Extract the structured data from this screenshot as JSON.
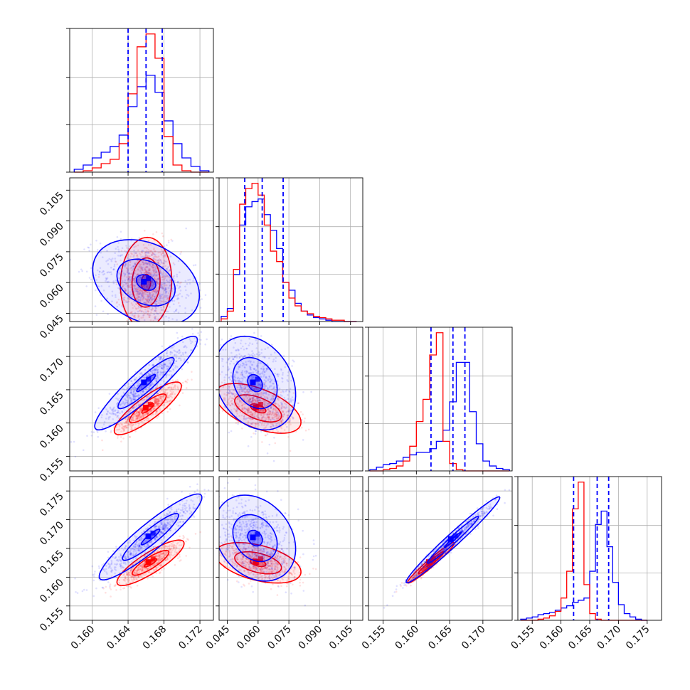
{
  "chart_data": {
    "type": "corner",
    "grid": true,
    "series_colors": {
      "blue": "#0000ff",
      "red": "#ff0000"
    },
    "quantile_line_style": "dashed",
    "params": [
      {
        "lim": [
          0.1575,
          0.1735
        ],
        "ticks": [
          "0.160",
          "0.164",
          "0.168",
          "0.172"
        ],
        "tick_values": [
          0.16,
          0.164,
          0.168,
          0.172
        ]
      },
      {
        "lim": [
          0.041,
          0.111
        ],
        "ticks": [
          "0.045",
          "0.060",
          "0.075",
          "0.090",
          "0.105"
        ],
        "tick_values": [
          0.045,
          0.06,
          0.075,
          0.09,
          0.105
        ]
      },
      {
        "lim": [
          0.1528,
          0.1744
        ],
        "ticks": [
          "0.155",
          "0.160",
          "0.165",
          "0.170"
        ],
        "tick_values": [
          0.155,
          0.16,
          0.165,
          0.17
        ]
      },
      {
        "lim": [
          0.1525,
          0.1775
        ],
        "ticks": [
          "0.155",
          "0.160",
          "0.165",
          "0.170",
          "0.175"
        ],
        "tick_values": [
          0.155,
          0.16,
          0.165,
          0.17,
          0.175
        ]
      }
    ],
    "histograms": [
      {
        "param": 0,
        "quantiles": [
          0.164,
          0.166,
          0.1678
        ],
        "blue": {
          "edges": [
            0.158,
            0.159,
            0.16,
            0.161,
            0.162,
            0.163,
            0.164,
            0.165,
            0.166,
            0.167,
            0.168,
            0.169,
            0.17,
            0.171,
            0.172,
            0.173
          ],
          "counts": [
            2,
            5,
            10,
            14,
            18,
            26,
            46,
            60,
            68,
            56,
            36,
            20,
            10,
            4,
            1
          ]
        },
        "red": {
          "edges": [
            0.158,
            0.159,
            0.16,
            0.161,
            0.162,
            0.163,
            0.164,
            0.165,
            0.166,
            0.167,
            0.168,
            0.169,
            0.17,
            0.171,
            0.172,
            0.173
          ],
          "counts": [
            0,
            1,
            3,
            6,
            9,
            20,
            55,
            88,
            97,
            80,
            25,
            5,
            1,
            0,
            0
          ]
        }
      },
      {
        "param": 1,
        "quantiles": [
          0.0535,
          0.062,
          0.0722
        ],
        "blue": {
          "edges": [
            0.042,
            0.045,
            0.048,
            0.051,
            0.054,
            0.057,
            0.06,
            0.063,
            0.066,
            0.069,
            0.072,
            0.075,
            0.078,
            0.081,
            0.084,
            0.087,
            0.09,
            0.093,
            0.096,
            0.099,
            0.102,
            0.105,
            0.108
          ],
          "counts": [
            4,
            10,
            36,
            74,
            88,
            92,
            94,
            82,
            70,
            56,
            30,
            24,
            14,
            8,
            5,
            3,
            2,
            1,
            0,
            0,
            0,
            0
          ]
        },
        "red": {
          "edges": [
            0.042,
            0.045,
            0.048,
            0.051,
            0.054,
            0.057,
            0.06,
            0.063,
            0.066,
            0.069,
            0.072,
            0.075,
            0.078,
            0.081,
            0.084,
            0.087,
            0.09,
            0.093,
            0.096,
            0.099,
            0.102,
            0.105,
            0.108
          ],
          "counts": [
            2,
            8,
            40,
            90,
            102,
            106,
            97,
            74,
            54,
            46,
            30,
            18,
            12,
            8,
            6,
            4,
            3,
            2,
            1,
            1,
            0,
            0
          ]
        }
      },
      {
        "param": 2,
        "quantiles": [
          0.1622,
          0.1655,
          0.1673
        ],
        "blue": {
          "edges": [
            0.153,
            0.154,
            0.155,
            0.156,
            0.157,
            0.158,
            0.159,
            0.16,
            0.161,
            0.162,
            0.163,
            0.164,
            0.165,
            0.166,
            0.167,
            0.168,
            0.169,
            0.17,
            0.171,
            0.172,
            0.173,
            0.174
          ],
          "counts": [
            1,
            3,
            5,
            6,
            8,
            11,
            13,
            15,
            15,
            18,
            24,
            33,
            56,
            88,
            88,
            48,
            22,
            8,
            4,
            2,
            1
          ]
        },
        "red": {
          "edges": [
            0.153,
            0.154,
            0.155,
            0.156,
            0.157,
            0.158,
            0.159,
            0.16,
            0.161,
            0.162,
            0.163,
            0.164,
            0.165,
            0.166,
            0.167,
            0.168,
            0.169,
            0.17,
            0.171,
            0.172,
            0.173,
            0.174
          ],
          "counts": [
            0,
            0,
            1,
            2,
            4,
            8,
            20,
            40,
            58,
            94,
            112,
            24,
            6,
            1,
            0,
            0,
            0,
            0,
            0,
            0,
            0
          ]
        }
      },
      {
        "param": 3,
        "quantiles": [
          0.1622,
          0.1663,
          0.1683
        ],
        "blue": {
          "edges": [
            0.153,
            0.154,
            0.155,
            0.156,
            0.157,
            0.158,
            0.159,
            0.16,
            0.161,
            0.162,
            0.163,
            0.164,
            0.165,
            0.166,
            0.167,
            0.168,
            0.169,
            0.17,
            0.171,
            0.172,
            0.173,
            0.174,
            0.175
          ],
          "counts": [
            1,
            2,
            3,
            5,
            6,
            7,
            9,
            11,
            13,
            16,
            18,
            20,
            44,
            86,
            98,
            66,
            34,
            14,
            6,
            3,
            1,
            0
          ]
        },
        "red": {
          "edges": [
            0.153,
            0.154,
            0.155,
            0.156,
            0.157,
            0.158,
            0.159,
            0.16,
            0.161,
            0.162,
            0.163,
            0.164,
            0.165,
            0.166,
            0.167,
            0.168,
            0.169,
            0.17,
            0.171,
            0.172,
            0.173,
            0.174,
            0.175
          ],
          "counts": [
            0,
            0,
            0,
            1,
            2,
            4,
            8,
            20,
            44,
            100,
            124,
            32,
            6,
            1,
            0,
            0,
            0,
            0,
            0,
            0,
            0,
            0
          ]
        }
      }
    ],
    "pairs": [
      {
        "x": 0,
        "y": 1,
        "blue": {
          "center": [
            0.166,
            0.06
          ],
          "sigma": [
            0.0027,
            0.0095
          ],
          "corr": -0.3
        },
        "red": {
          "center": [
            0.166,
            0.06
          ],
          "sigma": [
            0.0013,
            0.01
          ],
          "corr": 0.05
        }
      },
      {
        "x": 0,
        "y": 2,
        "blue": {
          "center": [
            0.166,
            0.166
          ],
          "sigma": [
            0.0026,
            0.0032
          ],
          "corr": 0.92
        },
        "red": {
          "center": [
            0.1662,
            0.1622
          ],
          "sigma": [
            0.0017,
            0.0018
          ],
          "corr": 0.85
        }
      },
      {
        "x": 1,
        "y": 2,
        "blue": {
          "center": [
            0.0585,
            0.166
          ],
          "sigma": [
            0.009,
            0.0032
          ],
          "corr": -0.25
        },
        "red": {
          "center": [
            0.06,
            0.1622
          ],
          "sigma": [
            0.0095,
            0.0017
          ],
          "corr": -0.55
        }
      },
      {
        "x": 0,
        "y": 3,
        "blue": {
          "center": [
            0.1665,
            0.167
          ],
          "sigma": [
            0.0026,
            0.0034
          ],
          "corr": 0.92
        },
        "red": {
          "center": [
            0.1665,
            0.1625
          ],
          "sigma": [
            0.0017,
            0.0018
          ],
          "corr": 0.85
        }
      },
      {
        "x": 1,
        "y": 3,
        "blue": {
          "center": [
            0.0585,
            0.1668
          ],
          "sigma": [
            0.009,
            0.0034
          ],
          "corr": -0.25
        },
        "red": {
          "center": [
            0.06,
            0.1625
          ],
          "sigma": [
            0.0095,
            0.0016
          ],
          "corr": -0.45
        }
      },
      {
        "x": 2,
        "y": 3,
        "blue": {
          "center": [
            0.1655,
            0.1665
          ],
          "sigma": [
            0.0032,
            0.0034
          ],
          "corr": 0.98
        },
        "red": {
          "center": [
            0.1622,
            0.1625
          ],
          "sigma": [
            0.0016,
            0.0016
          ],
          "corr": 0.97
        }
      }
    ]
  }
}
